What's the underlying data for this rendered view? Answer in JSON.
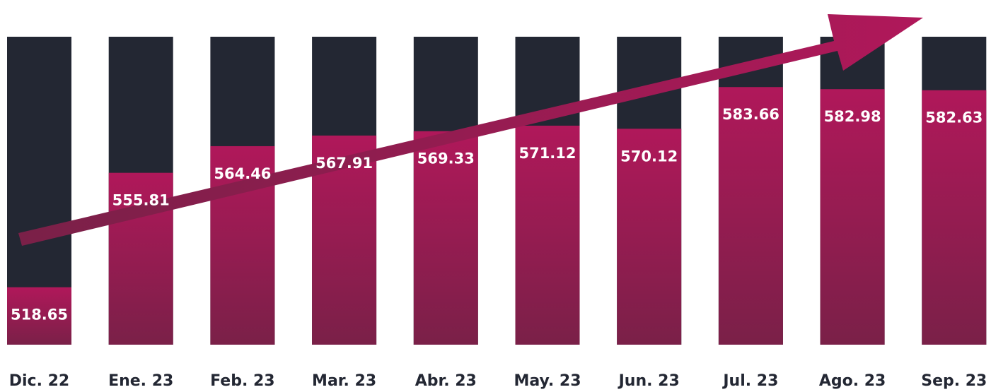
{
  "chart_data": {
    "type": "bar",
    "categories": [
      "Dic. 22",
      "Ene. 23",
      "Feb. 23",
      "Mar. 23",
      "Abr. 23",
      "May. 23",
      "Jun. 23",
      "Jul. 23",
      "Ago. 23",
      "Sep. 23"
    ],
    "values": [
      518.65,
      555.81,
      564.46,
      567.91,
      569.33,
      571.12,
      570.12,
      583.66,
      582.98,
      582.63
    ],
    "color": "#b0185a",
    "background_color": "#232733",
    "ylim": [
      500,
      600
    ]
  }
}
